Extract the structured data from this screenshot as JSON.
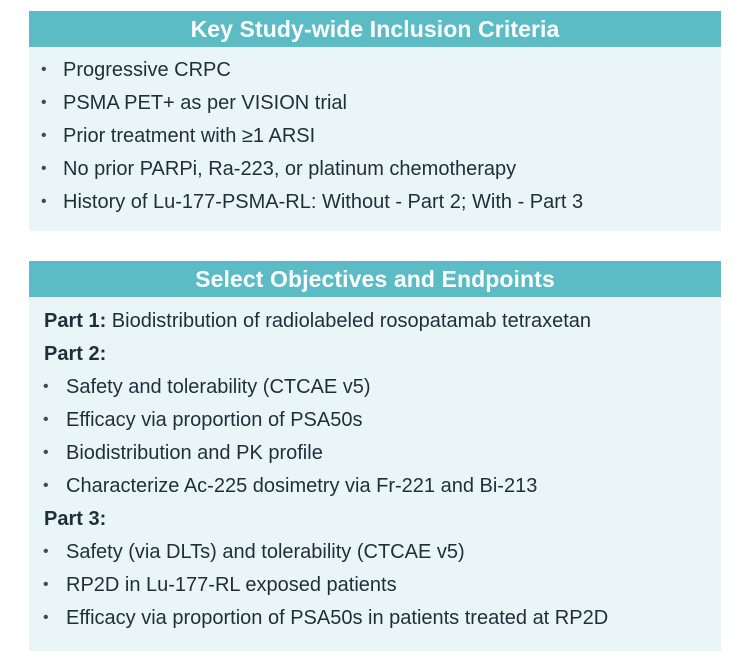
{
  "inclusion": {
    "title": "Key Study-wide Inclusion Criteria",
    "items": [
      "Progressive CRPC",
      "PSMA PET+ as per VISION trial",
      "Prior treatment with ≥1 ARSI",
      "No prior PARPi, Ra-223, or platinum chemotherapy",
      "History of Lu-177-PSMA-RL: Without - Part 2; With - Part 3"
    ]
  },
  "objectives": {
    "title": "Select Objectives and Endpoints",
    "part1": {
      "label": "Part 1:",
      "text": " Biodistribution of radiolabeled rosopatamab tetraxetan"
    },
    "part2": {
      "label": "Part 2:",
      "items": [
        "Safety and tolerability (CTCAE v5)",
        "Efficacy via proportion of PSA50s",
        "Biodistribution and PK profile",
        "Characterize Ac-225 dosimetry via Fr-221 and Bi-213"
      ]
    },
    "part3": {
      "label": "Part 3:",
      "items": [
        "Safety (via DLTs) and tolerability (CTCAE v5)",
        "RP2D in Lu-177-RL exposed patients",
        "Efficacy via proportion of PSA50s in patients treated at RP2D"
      ]
    }
  },
  "bullet_symbol": "•",
  "colors": {
    "header_bg": "#5cbcc6",
    "panel_bg": "#e9f5f6",
    "header_text": "#ffffff",
    "body_text": "#1f2f3a"
  }
}
